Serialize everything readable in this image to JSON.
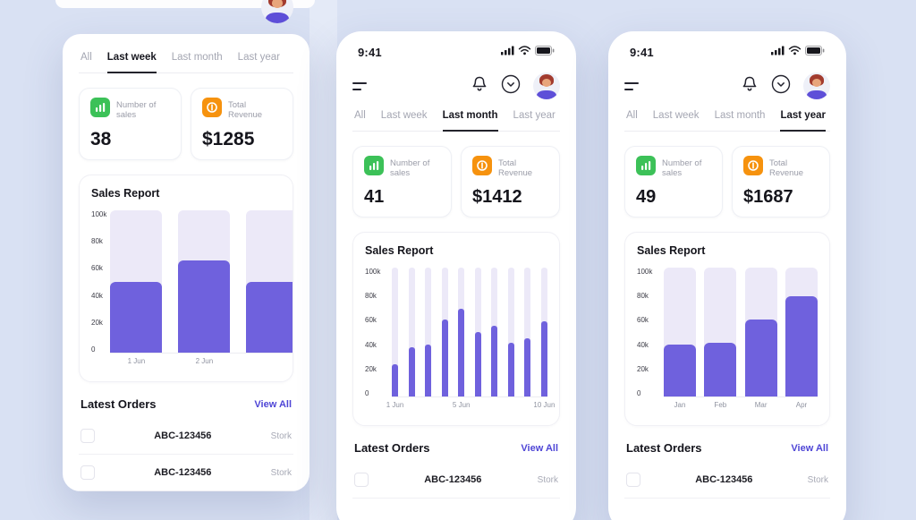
{
  "page": {
    "background": "#d9e1f3",
    "accent_purple": "#6f61dd",
    "bar_track": "#ece9f8",
    "green_icon_bg": "#3cc158",
    "orange_icon_bg": "#f6920e",
    "link_color": "#4f46d6"
  },
  "icons": {
    "menu": "menu-icon",
    "bell": "bell-icon",
    "period_selector": "chevron-circle-icon",
    "avatar": "avatar",
    "signal": "signal-icon",
    "wifi": "wifi-icon",
    "battery": "battery-icon",
    "sales": "sales-bars-icon",
    "revenue": "dollar-coin-icon",
    "checkbox": "checkbox"
  },
  "chart_data": [
    {
      "type": "bar",
      "title": "Sales Report",
      "ylim": [
        0,
        100000
      ],
      "yticks": [
        "100k",
        "80k",
        "60k",
        "40k",
        "20k",
        "0"
      ],
      "categories": [
        "1 Jun",
        "2 Jun",
        ""
      ],
      "values": [
        50000,
        65000,
        50000
      ],
      "bar_style": "wide-lg",
      "legend": false,
      "grid": false
    },
    {
      "type": "bar",
      "title": "Sales Report",
      "ylim": [
        0,
        100000
      ],
      "yticks": [
        "100k",
        "80k",
        "60k",
        "40k",
        "20k",
        "0"
      ],
      "categories": [
        "1 Jun",
        "",
        "",
        "",
        "5 Jun",
        "",
        "",
        "",
        "",
        "10 Jun"
      ],
      "values": [
        25000,
        38000,
        40000,
        60000,
        68000,
        50000,
        55000,
        42000,
        45000,
        58000
      ],
      "bar_style": "thin",
      "legend": false,
      "grid": false
    },
    {
      "type": "bar",
      "title": "Sales Report",
      "ylim": [
        0,
        100000
      ],
      "yticks": [
        "100k",
        "80k",
        "60k",
        "40k",
        "20k",
        "0"
      ],
      "categories": [
        "Jan",
        "Feb",
        "Mar",
        "Apr"
      ],
      "values": [
        40000,
        42000,
        60000,
        78000
      ],
      "bar_style": "wide",
      "legend": false,
      "grid": false
    }
  ],
  "phones": [
    {
      "tabs": [
        {
          "label": "All"
        },
        {
          "label": "Last week"
        },
        {
          "label": "Last month"
        },
        {
          "label": "Last year"
        }
      ],
      "active_tab": "Last week",
      "stats": {
        "sales_label": "Number of sales",
        "sales_value": "38",
        "revenue_label": "Total Revenue",
        "revenue_value": "$1285"
      },
      "orders": {
        "title": "Latest Orders",
        "view_all": "View All",
        "rows": [
          {
            "id": "ABC-123456",
            "status": "Stork"
          },
          {
            "id": "ABC-123456",
            "status": "Stork"
          }
        ]
      }
    },
    {
      "status_time": "9:41",
      "tabs": [
        {
          "label": "All"
        },
        {
          "label": "Last week"
        },
        {
          "label": "Last month"
        },
        {
          "label": "Last year"
        }
      ],
      "active_tab": "Last month",
      "stats": {
        "sales_label": "Number of sales",
        "sales_value": "41",
        "revenue_label": "Total Revenue",
        "revenue_value": "$1412"
      },
      "orders": {
        "title": "Latest Orders",
        "view_all": "View All",
        "rows": [
          {
            "id": "ABC-123456",
            "status": "Stork"
          }
        ]
      }
    },
    {
      "status_time": "9:41",
      "tabs": [
        {
          "label": "All"
        },
        {
          "label": "Last week"
        },
        {
          "label": "Last month"
        },
        {
          "label": "Last year"
        }
      ],
      "active_tab": "Last year",
      "stats": {
        "sales_label": "Number of sales",
        "sales_value": "49",
        "revenue_label": "Total Revenue",
        "revenue_value": "$1687"
      },
      "orders": {
        "title": "Latest Orders",
        "view_all": "View All",
        "rows": [
          {
            "id": "ABC-123456",
            "status": "Stork"
          }
        ]
      }
    }
  ]
}
